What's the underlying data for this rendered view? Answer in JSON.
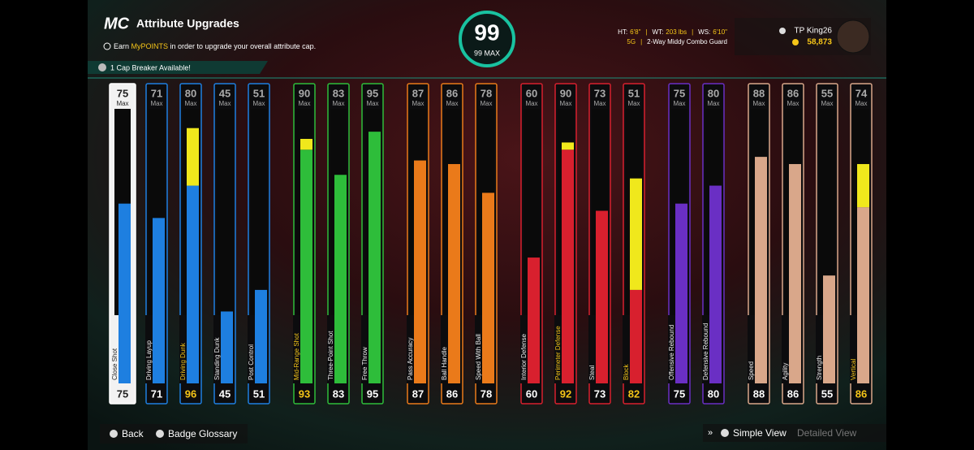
{
  "header": {
    "logo": "MC",
    "title": "Attribute Upgrades",
    "subtitle_pre": "Earn ",
    "subtitle_highlight": "MyPOINTS",
    "subtitle_post": " in order to upgrade your overall attribute cap.",
    "cap_breaker": "1 Cap Breaker Available!"
  },
  "overall": {
    "value": "99",
    "max": "99 MAX"
  },
  "player": {
    "ht_label": "HT:",
    "ht": "6'8\"",
    "wt_label": "WT:",
    "wt": "203 lbs",
    "ws_label": "WS:",
    "ws": "6'10\"",
    "rating": "5G",
    "archetype": "2-Way Middy Combo Guard",
    "name": "TP King26",
    "currency": "58,873"
  },
  "max_label": "Max",
  "groups": [
    {
      "color": "#1e7fe0",
      "attributes": [
        {
          "name": "Close Shot",
          "max": 75,
          "value": 75,
          "selected": true
        },
        {
          "name": "Driving Layup",
          "max": 71,
          "value": 71
        },
        {
          "name": "Driving Dunk",
          "max": 80,
          "value": 96
        },
        {
          "name": "Standing Dunk",
          "max": 45,
          "value": 45
        },
        {
          "name": "Post Control",
          "max": 51,
          "value": 51
        }
      ]
    },
    {
      "color": "#2ebd3a",
      "attributes": [
        {
          "name": "Mid-Range Shot",
          "max": 90,
          "value": 93
        },
        {
          "name": "Three-Point Shot",
          "max": 83,
          "value": 83
        },
        {
          "name": "Free Throw",
          "max": 95,
          "value": 95
        }
      ]
    },
    {
      "color": "#ea7a1a",
      "attributes": [
        {
          "name": "Pass Accuracy",
          "max": 87,
          "value": 87
        },
        {
          "name": "Ball Handle",
          "max": 86,
          "value": 86
        },
        {
          "name": "Speed With Ball",
          "max": 78,
          "value": 78
        }
      ]
    },
    {
      "color": "#d8202e",
      "attributes": [
        {
          "name": "Interior Defense",
          "max": 60,
          "value": 60
        },
        {
          "name": "Perimeter Defense",
          "max": 90,
          "value": 92
        },
        {
          "name": "Steal",
          "max": 73,
          "value": 73
        },
        {
          "name": "Block",
          "max": 51,
          "value": 82
        }
      ]
    },
    {
      "color": "#6a2fc4",
      "attributes": [
        {
          "name": "Offensive Rebound",
          "max": 75,
          "value": 75
        },
        {
          "name": "Defensive Rebound",
          "max": 80,
          "value": 80
        }
      ]
    },
    {
      "color": "#d9a78a",
      "attributes": [
        {
          "name": "Speed",
          "max": 88,
          "value": 88
        },
        {
          "name": "Agility",
          "max": 86,
          "value": 86
        },
        {
          "name": "Strength",
          "max": 55,
          "value": 55
        },
        {
          "name": "Vertical",
          "max": 74,
          "value": 86
        }
      ]
    }
  ],
  "footer": {
    "back": "Back",
    "glossary": "Badge Glossary",
    "simple": "Simple View",
    "detailed": "Detailed View"
  }
}
